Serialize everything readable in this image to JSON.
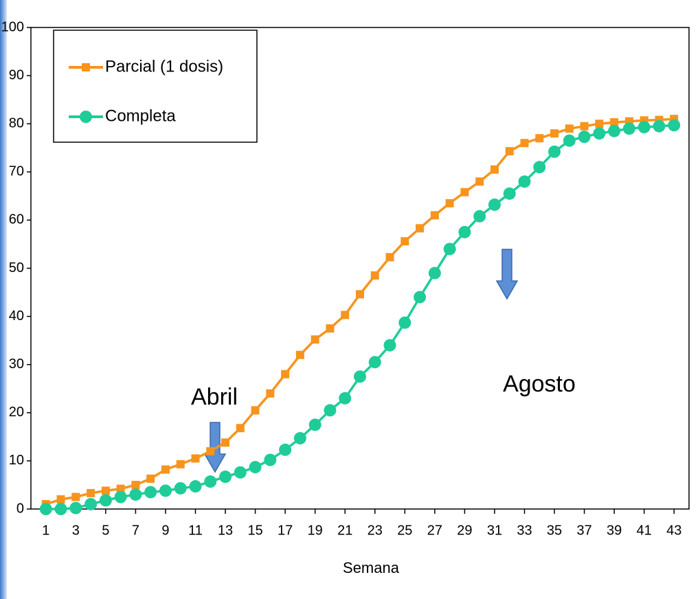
{
  "chart_data": {
    "type": "line",
    "x_label": "Semana",
    "x": [
      1,
      2,
      3,
      4,
      5,
      6,
      7,
      8,
      9,
      10,
      11,
      12,
      13,
      14,
      15,
      16,
      17,
      18,
      19,
      20,
      21,
      22,
      23,
      24,
      25,
      26,
      27,
      28,
      29,
      30,
      31,
      32,
      33,
      34,
      35,
      36,
      37,
      38,
      39,
      40,
      41,
      42,
      43
    ],
    "xlim": [
      0,
      44
    ],
    "xticks": [
      1,
      3,
      5,
      7,
      9,
      11,
      13,
      15,
      17,
      19,
      21,
      23,
      25,
      27,
      29,
      31,
      33,
      35,
      37,
      39,
      41,
      43
    ],
    "ylim": [
      0,
      100
    ],
    "yticks": [
      0,
      10,
      20,
      30,
      40,
      50,
      60,
      70,
      80,
      90,
      100
    ],
    "grid": false,
    "legend": "upper left",
    "series": [
      {
        "name": "Parcial (1 dosis)",
        "color": "#f7941d",
        "marker": "square",
        "values": [
          1,
          2,
          2.5,
          3.3,
          3.8,
          4.2,
          5,
          6.3,
          8.2,
          9.3,
          10.5,
          12,
          13.8,
          16.8,
          20.5,
          24,
          28,
          32,
          35.2,
          37.5,
          40.3,
          44.6,
          48.5,
          52.3,
          55.6,
          58.3,
          61,
          63.5,
          65.8,
          68,
          70.5,
          74.3,
          76,
          77,
          78,
          79,
          79.5,
          80,
          80.3,
          80.5,
          80.7,
          80.8,
          81
        ]
      },
      {
        "name": "Completa",
        "color": "#1fcc99",
        "marker": "circle",
        "values": [
          0,
          0,
          0.2,
          1,
          1.8,
          2.5,
          3,
          3.5,
          3.8,
          4.3,
          4.7,
          5.7,
          6.7,
          7.6,
          8.7,
          10.2,
          12.3,
          14.7,
          17.5,
          20.5,
          23,
          27.5,
          30.5,
          34,
          38.7,
          44,
          49,
          54,
          57.5,
          60.8,
          63.2,
          65.5,
          68,
          71,
          74.2,
          76.5,
          77.3,
          78,
          78.5,
          79,
          79.3,
          79.5,
          79.7
        ]
      }
    ],
    "annotations": [
      "Abril",
      "Agosto"
    ]
  }
}
